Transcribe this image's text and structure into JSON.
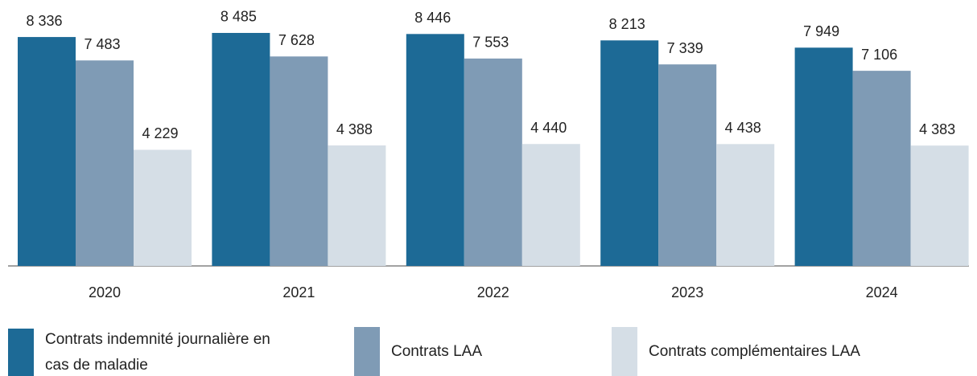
{
  "chart_data": {
    "type": "bar",
    "categories": [
      "2020",
      "2021",
      "2022",
      "2023",
      "2024"
    ],
    "series": [
      {
        "name": "Contrats indemnité journalière en cas de maladie",
        "color": "#1d6a96",
        "values": [
          8336,
          8485,
          8446,
          8213,
          7949
        ],
        "value_labels": [
          "8 336",
          "8 485",
          "8 446",
          "8 213",
          "7 949"
        ]
      },
      {
        "name": "Contrats LAA",
        "color": "#7f9bb5",
        "values": [
          7483,
          7628,
          7553,
          7339,
          7106
        ],
        "value_labels": [
          "7 483",
          "7 628",
          "7 553",
          "7 339",
          "7 106"
        ]
      },
      {
        "name": "Contrats complémentaires LAA",
        "color": "#d5dee6",
        "values": [
          4229,
          4388,
          4440,
          4438,
          4383
        ],
        "value_labels": [
          "4 229",
          "4 388",
          "4 440",
          "4 438",
          "4 383"
        ]
      }
    ]
  }
}
